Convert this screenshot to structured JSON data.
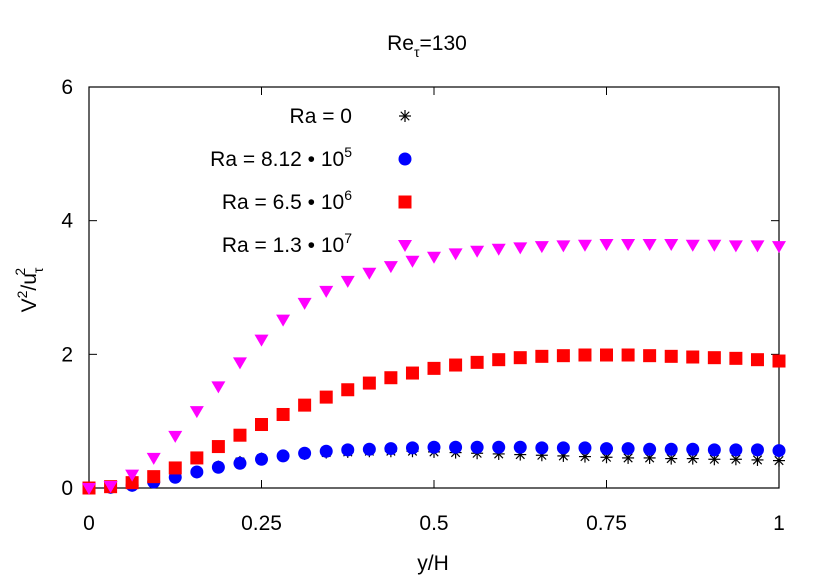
{
  "chart_data": {
    "type": "scatter",
    "title": {
      "main": "Re",
      "sub": "τ",
      "rest": "=130"
    },
    "xlabel": "y/H",
    "ylabel": {
      "v": "V",
      "vsup": "2",
      "mid": "/u",
      "usub": "τ",
      "usup": "2"
    },
    "xlim": [
      0,
      1
    ],
    "ylim": [
      0,
      6
    ],
    "xticks": [
      "0",
      "0.25",
      "0.5",
      "0.75",
      "1"
    ],
    "xtick_values": [
      0,
      0.25,
      0.5,
      0.75,
      1
    ],
    "yticks": [
      "0",
      "2",
      "4",
      "6"
    ],
    "ytick_values": [
      0,
      2,
      4,
      6
    ],
    "grid": false,
    "legend_position": "top-left",
    "x": [
      0,
      0.0313,
      0.0625,
      0.0938,
      0.125,
      0.1563,
      0.1875,
      0.2188,
      0.25,
      0.2813,
      0.3125,
      0.3438,
      0.375,
      0.4063,
      0.4375,
      0.4688,
      0.5,
      0.5313,
      0.5625,
      0.5938,
      0.625,
      0.6563,
      0.6875,
      0.7188,
      0.75,
      0.7813,
      0.8125,
      0.8438,
      0.875,
      0.9063,
      0.9375,
      0.9688,
      1.0
    ],
    "series": [
      {
        "name": "Ra = 0",
        "marker": "asterisk",
        "color": "#000000",
        "values": [
          0.0,
          0.01,
          0.04,
          0.09,
          0.16,
          0.24,
          0.32,
          0.39,
          0.44,
          0.48,
          0.51,
          0.53,
          0.54,
          0.55,
          0.55,
          0.55,
          0.54,
          0.53,
          0.52,
          0.51,
          0.5,
          0.49,
          0.48,
          0.47,
          0.46,
          0.45,
          0.45,
          0.44,
          0.44,
          0.43,
          0.43,
          0.42,
          0.41
        ]
      },
      {
        "name": "Ra = 8.12 • 10",
        "name_exp": "5",
        "marker": "circle",
        "color": "#0000ff",
        "values": [
          0.0,
          0.01,
          0.04,
          0.09,
          0.16,
          0.24,
          0.31,
          0.37,
          0.43,
          0.48,
          0.52,
          0.55,
          0.57,
          0.58,
          0.59,
          0.6,
          0.61,
          0.61,
          0.61,
          0.61,
          0.61,
          0.6,
          0.6,
          0.6,
          0.59,
          0.59,
          0.58,
          0.58,
          0.58,
          0.57,
          0.57,
          0.57,
          0.56
        ]
      },
      {
        "name": "Ra = 6.5 • 10",
        "name_exp": "6",
        "marker": "square",
        "color": "#ff0000",
        "values": [
          0.0,
          0.02,
          0.08,
          0.17,
          0.3,
          0.45,
          0.62,
          0.79,
          0.95,
          1.1,
          1.24,
          1.36,
          1.47,
          1.57,
          1.65,
          1.72,
          1.79,
          1.84,
          1.88,
          1.92,
          1.95,
          1.97,
          1.98,
          1.99,
          1.99,
          1.99,
          1.98,
          1.97,
          1.96,
          1.95,
          1.94,
          1.92,
          1.9
        ]
      },
      {
        "name": "Ra = 1.3 • 10",
        "name_exp": "7",
        "marker": "triangle-down",
        "color": "#ff00ff",
        "values": [
          0.0,
          0.03,
          0.2,
          0.45,
          0.78,
          1.15,
          1.52,
          1.88,
          2.22,
          2.52,
          2.77,
          2.95,
          3.1,
          3.22,
          3.32,
          3.4,
          3.46,
          3.51,
          3.55,
          3.58,
          3.6,
          3.62,
          3.63,
          3.64,
          3.65,
          3.65,
          3.65,
          3.65,
          3.64,
          3.64,
          3.63,
          3.63,
          3.62
        ]
      }
    ]
  }
}
